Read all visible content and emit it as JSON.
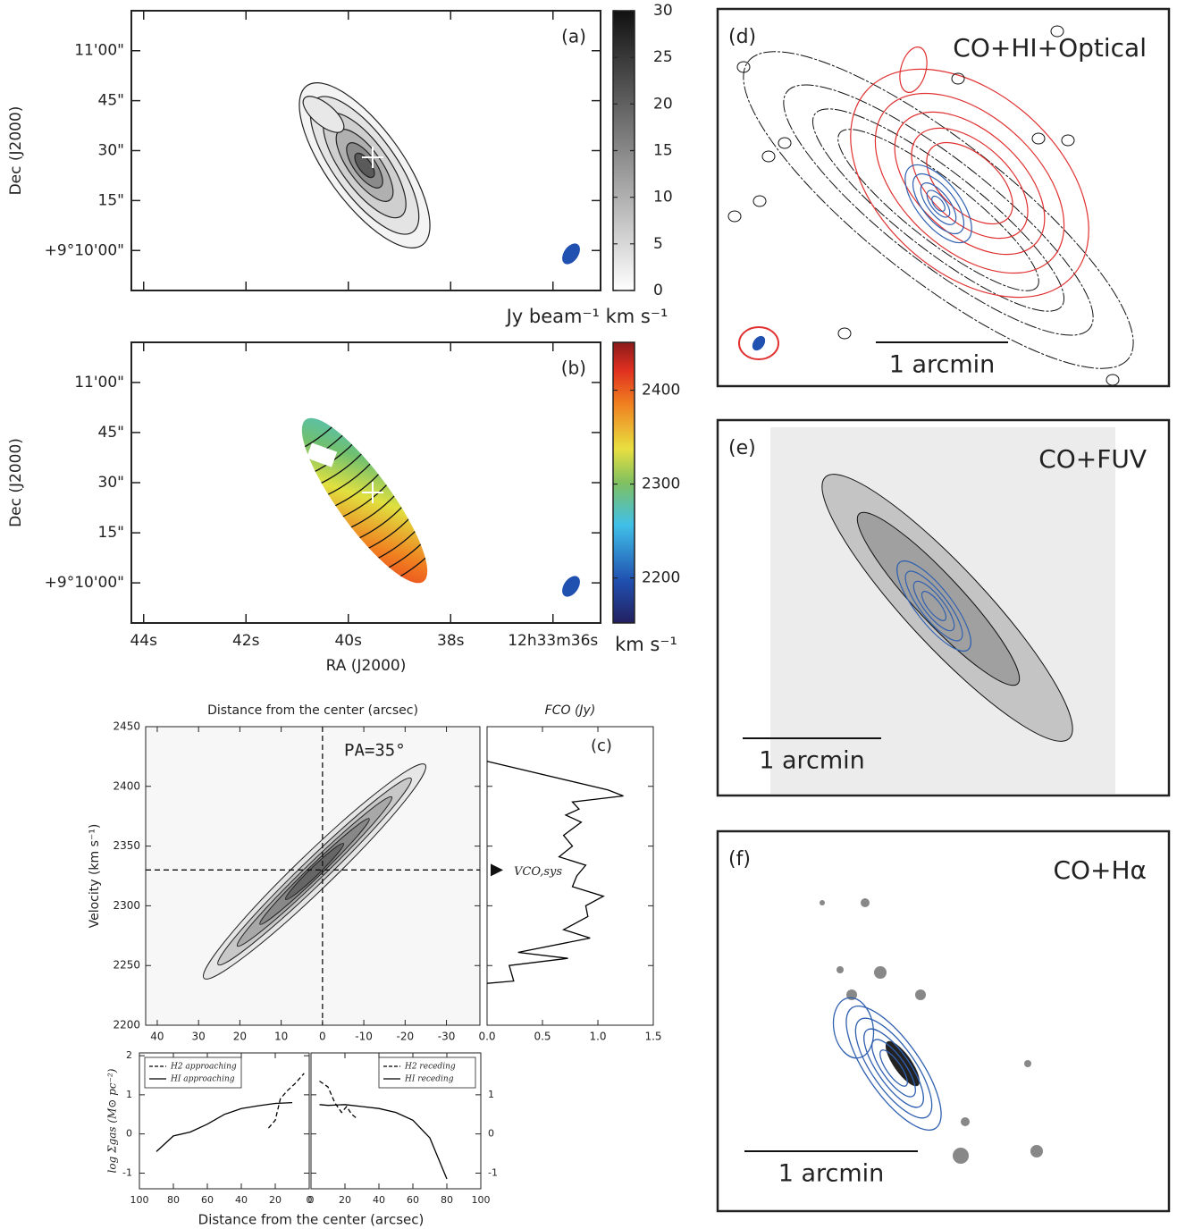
{
  "chart_data": [
    {
      "type": "image",
      "label": "(a)",
      "ylabel": "Dec (J2000)",
      "ylim": [
        -12,
        72
      ],
      "yticks": [
        {
          "value": 60,
          "label": "11'00\""
        },
        {
          "value": 45,
          "label": "45\""
        },
        {
          "value": 30,
          "label": "30\""
        },
        {
          "value": 15,
          "label": "15\""
        },
        {
          "value": 0,
          "label": "+9°10'00\""
        }
      ],
      "colorbar": {
        "lim": [
          0,
          30
        ],
        "ticks": [
          0,
          5,
          10,
          15,
          20,
          25,
          30
        ],
        "label": "Jy beam⁻¹ km s⁻¹",
        "cmap": "gray"
      }
    },
    {
      "type": "image",
      "label": "(b)",
      "ylabel": "Dec (J2000)",
      "xlabel": "RA (J2000)",
      "ylim": [
        -12,
        72
      ],
      "xlim": [
        44.24,
        35.07
      ],
      "yticks": [
        {
          "value": 60,
          "label": "11'00\""
        },
        {
          "value": 45,
          "label": "45\""
        },
        {
          "value": 30,
          "label": "30\""
        },
        {
          "value": 15,
          "label": "15\""
        },
        {
          "value": 0,
          "label": "+9°10'00\""
        }
      ],
      "xticks": [
        {
          "value": 44,
          "label": "44s"
        },
        {
          "value": 42,
          "label": "42s"
        },
        {
          "value": 40,
          "label": "40s"
        },
        {
          "value": 38,
          "label": "38s"
        },
        {
          "value": 36,
          "label": "12h33m36s"
        }
      ],
      "colorbar": {
        "lim": [
          2152,
          2451
        ],
        "ticks": [
          2200,
          2300,
          2400
        ],
        "label": "km s⁻¹",
        "cmap": "jet"
      }
    },
    {
      "type": "pv",
      "title": "Distance from the center (arcsec)",
      "ylabel": "Velocity (km s⁻¹)",
      "annotation": "PA=35°",
      "xlim": [
        42.8,
        -38.1
      ],
      "xticks": [
        40,
        30,
        20,
        10,
        0,
        -10,
        -20,
        -30
      ],
      "ylim": [
        2200,
        2450
      ],
      "yticks": [
        2200,
        2250,
        2300,
        2350,
        2400,
        2450
      ],
      "center": 0,
      "vsys": 2330,
      "vsys_label": "VCO,sys"
    },
    {
      "type": "line",
      "title": "FCO (Jy)",
      "label": "(c)",
      "xlim": [
        0,
        1.5
      ],
      "ylim": [
        2200,
        2450
      ],
      "xticks": [
        {
          "value": 0,
          "label": "0.0"
        },
        {
          "value": 0.5,
          "label": "0.5"
        },
        {
          "value": 1,
          "label": "1.0"
        },
        {
          "value": 1.5,
          "label": "1.5"
        }
      ],
      "color": "#000000",
      "x": [
        0,
        1.09,
        1.23,
        0.77,
        0.83,
        0.71,
        0.85,
        0.69,
        0.77,
        0.65,
        0.89,
        0.81,
        0.77,
        1.05,
        0.89,
        0.91,
        0.69,
        0.93,
        0.28,
        0.73,
        0.2,
        0.24,
        0
      ],
      "values": [
        2421,
        2397,
        2392,
        2387,
        2381,
        2376,
        2370,
        2359,
        2350,
        2341,
        2334,
        2325,
        2316,
        2308,
        2300,
        2291,
        2280,
        2273,
        2261,
        2256,
        2250,
        2237,
        2235
      ]
    },
    {
      "type": "line",
      "ylabel": "log Σgas (M⊙ pc⁻²)",
      "xlim": [
        100,
        0
      ],
      "xticks": [
        100,
        80,
        60,
        40,
        20,
        0
      ],
      "ylim": [
        -1.4,
        2.07
      ],
      "yticks": [
        -1,
        0,
        1,
        2
      ],
      "ytick_side": "left",
      "legend": "upper left",
      "series": [
        {
          "name": "H2 approaching",
          "color": "#000000",
          "dashed": true,
          "x": [
            24,
            20,
            17,
            13,
            8,
            3
          ],
          "values": [
            0.15,
            0.35,
            0.9,
            1.1,
            1.3,
            1.55
          ]
        },
        {
          "name": "HI approaching",
          "color": "#000000",
          "dashed": false,
          "x": [
            90,
            80,
            70,
            60,
            50,
            40,
            30,
            20,
            10
          ],
          "values": [
            -0.45,
            -0.05,
            0.05,
            0.25,
            0.5,
            0.65,
            0.72,
            0.78,
            0.8
          ]
        }
      ]
    },
    {
      "type": "line",
      "xlabel": "Distance from the center (arcsec)",
      "xlim": [
        0,
        100
      ],
      "xticks": [
        0,
        20,
        40,
        60,
        80,
        100
      ],
      "ylim": [
        -1.4,
        2.07
      ],
      "yticks": [
        -1,
        0,
        1
      ],
      "ytick_side": "right",
      "legend": "upper right",
      "series": [
        {
          "name": "H2 receding",
          "color": "#000000",
          "dashed": true,
          "x": [
            5,
            10,
            14,
            18,
            21,
            24,
            27
          ],
          "values": [
            1.35,
            1.2,
            0.8,
            0.55,
            0.7,
            0.5,
            0.4
          ]
        },
        {
          "name": "HI receding",
          "color": "#000000",
          "dashed": false,
          "x": [
            5,
            10,
            20,
            30,
            40,
            50,
            60,
            70,
            80
          ],
          "values": [
            0.75,
            0.73,
            0.75,
            0.7,
            0.65,
            0.55,
            0.35,
            -0.1,
            -1.15
          ]
        }
      ]
    },
    {
      "type": "image",
      "label": "(d)",
      "title": "CO+HI+Optical",
      "scale_label": "1 arcmin"
    },
    {
      "type": "image",
      "label": "(e)",
      "title": "CO+FUV",
      "scale_label": "1 arcmin"
    },
    {
      "type": "image",
      "label": "(f)",
      "title": "CO+Hα",
      "scale_label": "1 arcmin"
    }
  ]
}
